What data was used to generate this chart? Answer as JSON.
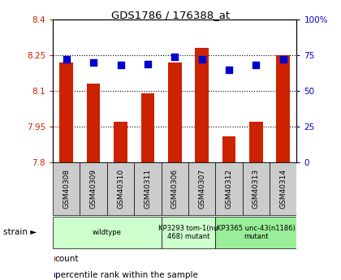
{
  "title": "GDS1786 / 176388_at",
  "samples": [
    "GSM40308",
    "GSM40309",
    "GSM40310",
    "GSM40311",
    "GSM40306",
    "GSM40307",
    "GSM40312",
    "GSM40313",
    "GSM40314"
  ],
  "count_values": [
    8.22,
    8.13,
    7.97,
    8.09,
    8.22,
    8.28,
    7.91,
    7.97,
    8.25
  ],
  "percentile_values": [
    72,
    70,
    68,
    69,
    74,
    72,
    65,
    68,
    72
  ],
  "ylim_left": [
    7.8,
    8.4
  ],
  "ylim_right": [
    0,
    100
  ],
  "yticks_left": [
    7.8,
    7.95,
    8.1,
    8.25,
    8.4
  ],
  "ytick_labels_left": [
    "7.8",
    "7.95",
    "8.1",
    "8.25",
    "8.4"
  ],
  "yticks_right": [
    0,
    25,
    50,
    75,
    100
  ],
  "ytick_labels_right": [
    "0",
    "25",
    "50",
    "75",
    "100%"
  ],
  "grid_lines": [
    7.95,
    8.1,
    8.25
  ],
  "strain_groups": [
    {
      "label": "wildtype",
      "start": 0,
      "end": 3,
      "color": "#ccffcc"
    },
    {
      "label": "KP3293 tom-1(nu\n468) mutant",
      "start": 4,
      "end": 5,
      "color": "#ccffcc"
    },
    {
      "label": "KP3365 unc-43(n1186)\nmutant",
      "start": 6,
      "end": 8,
      "color": "#99ee99"
    }
  ],
  "bar_color": "#cc2200",
  "dot_color": "#0000cc",
  "bar_baseline": 7.8,
  "bar_width": 0.5,
  "dot_size": 30,
  "bg_color": "#ffffff",
  "plot_bg_color": "#ffffff",
  "tick_color_left": "#cc2200",
  "tick_color_right": "#0000cc",
  "legend_labels": [
    "count",
    "percentile rank within the sample"
  ],
  "legend_colors": [
    "#cc2200",
    "#0000cc"
  ],
  "strain_label": "strain ►",
  "sample_box_color": "#cccccc",
  "xlim": [
    -0.5,
    8.5
  ]
}
